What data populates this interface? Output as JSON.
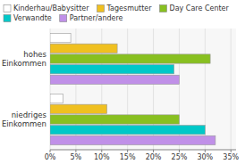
{
  "chart_data": {
    "type": "bar",
    "orientation": "horizontal",
    "categories": [
      "niedriges\nEinkommen",
      "hohes\nEinkommen"
    ],
    "series": [
      {
        "name": "Kinderhau/Babysitter",
        "color": "#ffffff",
        "values": [
          2.5,
          4.0
        ]
      },
      {
        "name": "Tagesmutter",
        "color": "#f0c020",
        "values": [
          11.0,
          13.0
        ]
      },
      {
        "name": "Day Care Center",
        "color": "#88c020",
        "values": [
          25.0,
          31.0
        ]
      },
      {
        "name": "Verwandte",
        "color": "#00c8c8",
        "values": [
          30.0,
          24.0
        ]
      },
      {
        "name": "Partner/andere",
        "color": "#c090e8",
        "values": [
          32.0,
          25.0
        ]
      }
    ],
    "xlim": [
      0,
      36
    ],
    "xticks": [
      {
        "value": 0,
        "label": "0%"
      },
      {
        "value": 5,
        "label": "5%"
      },
      {
        "value": 10,
        "label": "10%"
      },
      {
        "value": 15,
        "label": "15%"
      },
      {
        "value": 20,
        "label": "20%"
      },
      {
        "value": 25,
        "label": "25%"
      },
      {
        "value": 30,
        "label": "30%"
      },
      {
        "value": 35,
        "label": "35%"
      }
    ],
    "grid": true,
    "legend": "top"
  }
}
